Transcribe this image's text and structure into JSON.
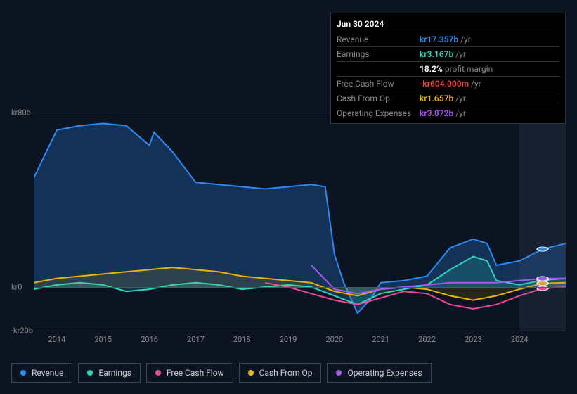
{
  "tooltip": {
    "date": "Jun 30 2024",
    "rows": [
      {
        "label": "Revenue",
        "value": "kr17.357b",
        "unit": "/yr",
        "color": "#2a8af6"
      },
      {
        "label": "Earnings",
        "value": "kr3.167b",
        "unit": "/yr",
        "color": "#2dd4bf"
      },
      {
        "label": "",
        "value": "18.2%",
        "unit": "profit margin",
        "color": "#ffffff"
      },
      {
        "label": "Free Cash Flow",
        "value": "-kr604.000m",
        "unit": "/yr",
        "color": "#ef4444"
      },
      {
        "label": "Cash From Op",
        "value": "kr1.657b",
        "unit": "/yr",
        "color": "#eab308"
      },
      {
        "label": "Operating Expenses",
        "value": "kr3.872b",
        "unit": "/yr",
        "color": "#a855f7"
      }
    ]
  },
  "chart": {
    "type": "area-line",
    "background_color": "#0d1421",
    "grid_color": "#2a3544",
    "text_color": "#888888",
    "ylim": [
      -20,
      80
    ],
    "yticks": [
      {
        "v": 80,
        "label": "kr80b"
      },
      {
        "v": 0,
        "label": "kr0"
      },
      {
        "v": -20,
        "label": "-kr20b"
      }
    ],
    "xlim": [
      2013.5,
      2025.0
    ],
    "xticks": [
      2014,
      2015,
      2016,
      2017,
      2018,
      2019,
      2020,
      2021,
      2022,
      2023,
      2024
    ],
    "highlight_band": {
      "start": 2024.0,
      "end": 2025.0
    },
    "marker_x": 2024.5,
    "series": [
      {
        "name": "Revenue",
        "color": "#2a8af6",
        "fill_opacity": 0.25,
        "line_width": 2,
        "data": [
          [
            2013.5,
            50
          ],
          [
            2014,
            72
          ],
          [
            2014.5,
            74
          ],
          [
            2015,
            75
          ],
          [
            2015.5,
            74
          ],
          [
            2016,
            65
          ],
          [
            2016.1,
            71
          ],
          [
            2016.5,
            62
          ],
          [
            2017,
            48
          ],
          [
            2017.5,
            47
          ],
          [
            2018,
            46
          ],
          [
            2018.5,
            45
          ],
          [
            2019,
            46
          ],
          [
            2019.5,
            47
          ],
          [
            2019.8,
            46
          ],
          [
            2020,
            15
          ],
          [
            2020.2,
            2
          ],
          [
            2020.5,
            -12
          ],
          [
            2020.8,
            -5
          ],
          [
            2021,
            2
          ],
          [
            2021.5,
            3
          ],
          [
            2022,
            5
          ],
          [
            2022.5,
            18
          ],
          [
            2023,
            22
          ],
          [
            2023.3,
            20
          ],
          [
            2023.5,
            10
          ],
          [
            2024,
            12
          ],
          [
            2024.5,
            17.4
          ],
          [
            2025,
            20
          ]
        ]
      },
      {
        "name": "Earnings",
        "color": "#2dd4bf",
        "fill_opacity": 0.18,
        "line_width": 2,
        "data": [
          [
            2013.5,
            -1
          ],
          [
            2014,
            1
          ],
          [
            2014.5,
            2
          ],
          [
            2015,
            1
          ],
          [
            2015.5,
            -2
          ],
          [
            2016,
            -1
          ],
          [
            2016.5,
            1
          ],
          [
            2017,
            2
          ],
          [
            2017.5,
            1
          ],
          [
            2018,
            -1
          ],
          [
            2018.5,
            0
          ],
          [
            2019,
            1
          ],
          [
            2019.5,
            0
          ],
          [
            2020,
            -4
          ],
          [
            2020.5,
            -8
          ],
          [
            2021,
            -3
          ],
          [
            2021.5,
            -1
          ],
          [
            2022,
            1
          ],
          [
            2022.5,
            8
          ],
          [
            2023,
            14
          ],
          [
            2023.3,
            12
          ],
          [
            2023.5,
            3
          ],
          [
            2024,
            1
          ],
          [
            2024.5,
            3.2
          ],
          [
            2025,
            4
          ]
        ]
      },
      {
        "name": "Free Cash Flow",
        "color": "#ec4899",
        "fill_opacity": 0,
        "line_width": 2,
        "data": [
          [
            2018.5,
            2
          ],
          [
            2019,
            0
          ],
          [
            2019.5,
            -3
          ],
          [
            2020,
            -6
          ],
          [
            2020.5,
            -8
          ],
          [
            2021,
            -5
          ],
          [
            2021.5,
            -2
          ],
          [
            2022,
            -3
          ],
          [
            2022.5,
            -8
          ],
          [
            2023,
            -10
          ],
          [
            2023.5,
            -8
          ],
          [
            2024,
            -4
          ],
          [
            2024.5,
            -0.6
          ],
          [
            2025,
            0
          ]
        ]
      },
      {
        "name": "Cash From Op",
        "color": "#eab308",
        "fill_opacity": 0.12,
        "line_width": 2,
        "data": [
          [
            2013.5,
            2
          ],
          [
            2014,
            4
          ],
          [
            2014.5,
            5
          ],
          [
            2015,
            6
          ],
          [
            2015.5,
            7
          ],
          [
            2016,
            8
          ],
          [
            2016.5,
            9
          ],
          [
            2017,
            8
          ],
          [
            2017.5,
            7
          ],
          [
            2018,
            5
          ],
          [
            2018.5,
            4
          ],
          [
            2019,
            3
          ],
          [
            2019.5,
            2
          ],
          [
            2020,
            -2
          ],
          [
            2020.5,
            -4
          ],
          [
            2021,
            -1
          ],
          [
            2021.5,
            0
          ],
          [
            2022,
            -1
          ],
          [
            2022.5,
            -4
          ],
          [
            2023,
            -6
          ],
          [
            2023.5,
            -4
          ],
          [
            2024,
            -1
          ],
          [
            2024.5,
            1.7
          ],
          [
            2025,
            2
          ]
        ]
      },
      {
        "name": "Operating Expenses",
        "color": "#a855f7",
        "fill_opacity": 0,
        "line_width": 2,
        "data": [
          [
            2019.5,
            10
          ],
          [
            2020,
            -1
          ],
          [
            2020.5,
            -3
          ],
          [
            2021,
            -1
          ],
          [
            2021.5,
            0
          ],
          [
            2022,
            1
          ],
          [
            2022.5,
            2
          ],
          [
            2023,
            2
          ],
          [
            2023.5,
            2
          ],
          [
            2024,
            3
          ],
          [
            2024.5,
            3.9
          ],
          [
            2025,
            4
          ]
        ]
      }
    ],
    "legend": [
      {
        "label": "Revenue",
        "color": "#2a8af6"
      },
      {
        "label": "Earnings",
        "color": "#2dd4bf"
      },
      {
        "label": "Free Cash Flow",
        "color": "#ec4899"
      },
      {
        "label": "Cash From Op",
        "color": "#eab308"
      },
      {
        "label": "Operating Expenses",
        "color": "#a855f7"
      }
    ]
  }
}
